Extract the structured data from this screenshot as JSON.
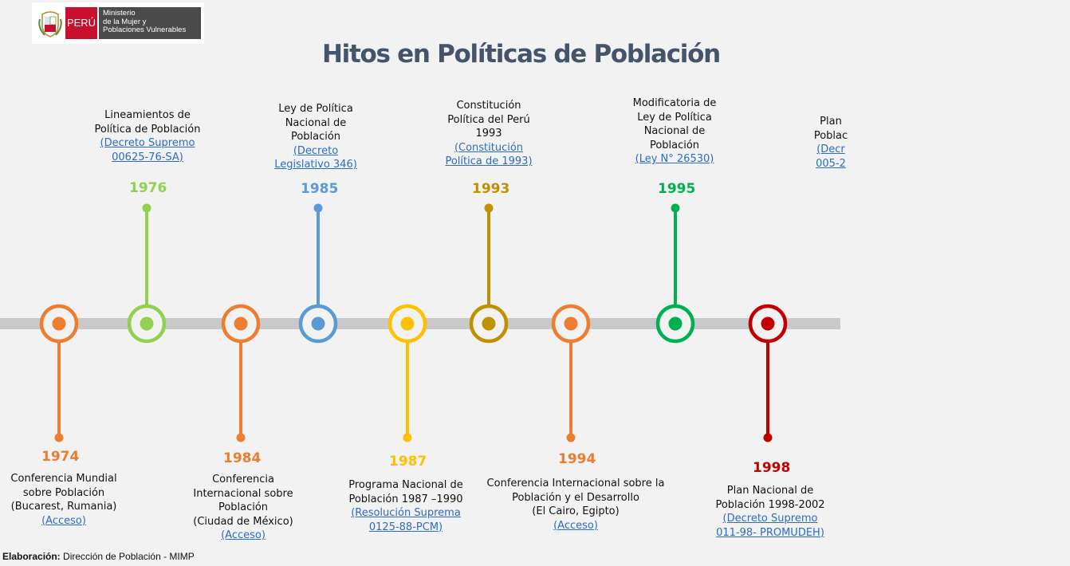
{
  "logo": {
    "country": "PERÚ",
    "ministry_lines": [
      "Ministerio",
      "de la Mujer y",
      "Poblaciones Vulnerables"
    ]
  },
  "title": "Hitos en  Políticas de Población",
  "colors": {
    "orange": "#ed7d31",
    "green": "#92d050",
    "blue": "#5b9bd5",
    "yellow": "#ffc000",
    "gold": "#bf9000",
    "dark_green": "#00b050",
    "red": "#c00000",
    "axis": "#c9c9c9",
    "title": "#44546a",
    "link": "#2b6cc4"
  },
  "milestones": [
    {
      "year": "1974",
      "position": "below",
      "color": "orange",
      "lines": [
        "Conferencia Mundial",
        "sobre Población",
        "(Bucarest, Rumania)"
      ],
      "links": [
        "(Acceso)"
      ]
    },
    {
      "year": "1976",
      "position": "above",
      "color": "green",
      "lines": [
        "Lineamientos de",
        "Política de Población"
      ],
      "links": [
        "(Decreto Supremo",
        "00625-76-SA)"
      ]
    },
    {
      "year": "1984",
      "position": "below",
      "color": "orange",
      "lines": [
        "Conferencia",
        "Internacional sobre",
        "Población",
        "(Ciudad de México)"
      ],
      "links": [
        "(Acceso)"
      ]
    },
    {
      "year": "1985",
      "position": "above",
      "color": "blue",
      "lines": [
        "Ley de Política",
        "Nacional de",
        "Población"
      ],
      "links": [
        "(Decreto",
        "Legislativo 346)"
      ]
    },
    {
      "year": "1987",
      "position": "below",
      "color": "yellow",
      "lines": [
        "Programa Nacional de",
        "Población 1987 –1990"
      ],
      "links": [
        "(Resolución Suprema",
        "0125-88-PCM)"
      ]
    },
    {
      "year": "1993",
      "position": "above",
      "color": "gold",
      "lines": [
        "Constitución",
        "Política del Perú",
        "1993"
      ],
      "links": [
        "(Constitución",
        "Política de 1993)"
      ]
    },
    {
      "year": "1994",
      "position": "below",
      "color": "orange",
      "lines": [
        "Conferencia Internacional sobre la",
        "Población y el Desarrollo",
        "(El Cairo, Egipto)"
      ],
      "links": [
        "(Acceso)"
      ]
    },
    {
      "year": "1995",
      "position": "above",
      "color": "dark_green",
      "lines": [
        "Modificatoria de",
        "Ley de Política",
        "Nacional de",
        "Población"
      ],
      "links": [
        "(Ley N° 26530)"
      ]
    },
    {
      "year": "1998",
      "position": "below",
      "color": "red",
      "lines": [
        "Plan Nacional de",
        "Población 1998-2002"
      ],
      "links": [
        "(Decreto Supremo",
        "011-98- PROMUDEH)"
      ]
    },
    {
      "year": "",
      "position": "above",
      "color": "",
      "lines": [
        "Plan",
        "Poblac"
      ],
      "links": [
        "(Decr",
        "005-2"
      ]
    }
  ],
  "footer": {
    "label": "Elaboración:",
    "text": " Dirección de Población - MIMP"
  }
}
